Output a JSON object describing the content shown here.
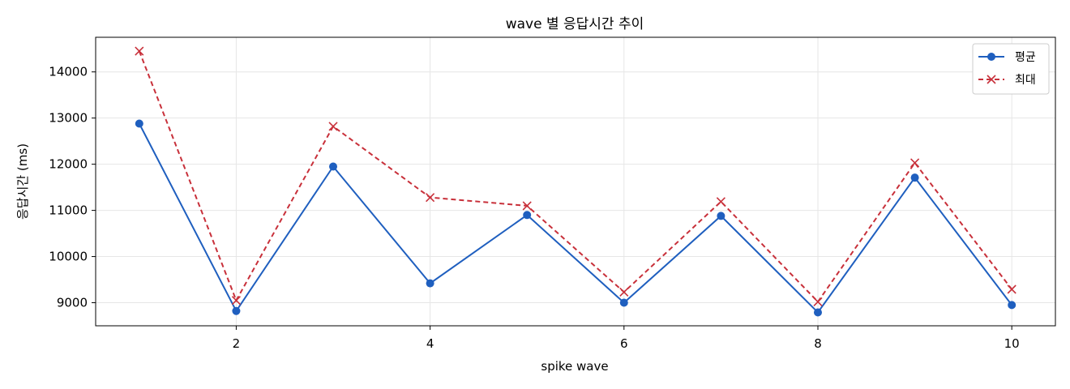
{
  "chart_data": {
    "type": "line",
    "title": "wave 별 응답시간 추이",
    "xlabel": "spike wave",
    "ylabel": "응답시간 (ms)",
    "x": [
      1,
      2,
      3,
      4,
      5,
      6,
      7,
      8,
      9,
      10
    ],
    "xlim": [
      0.55,
      10.45
    ],
    "ylim": [
      8500,
      14750
    ],
    "xticks": [
      2,
      4,
      6,
      8,
      10
    ],
    "yticks": [
      9000,
      10000,
      11000,
      12000,
      13000,
      14000
    ],
    "xtick_labels": [
      "2",
      "4",
      "6",
      "8",
      "10"
    ],
    "ytick_labels": [
      "9000",
      "10000",
      "11000",
      "12000",
      "13000",
      "14000"
    ],
    "grid": true,
    "legend_position": "top-right",
    "series": [
      {
        "name": "평균",
        "color": "#1f5fbf",
        "line_style": "solid",
        "marker": "circle",
        "values": [
          12880,
          8820,
          11950,
          9420,
          10900,
          9000,
          10880,
          8790,
          11710,
          8950
        ]
      },
      {
        "name": "최대",
        "color": "#c8303a",
        "line_style": "dashed",
        "marker": "x",
        "values": [
          14450,
          9050,
          12820,
          11280,
          11100,
          9230,
          11190,
          9020,
          12030,
          9290
        ]
      }
    ]
  }
}
